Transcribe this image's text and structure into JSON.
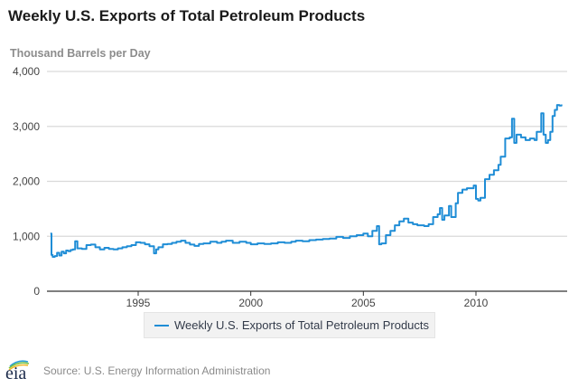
{
  "title": "Weekly U.S. Exports of Total Petroleum Products",
  "footer": {
    "logo_text": "eia",
    "source": "Source: U.S. Energy Information Administration"
  },
  "colors": {
    "series": "#1f8dd6",
    "gridline": "#d9d9d9",
    "axis": "#333333"
  },
  "chart_data": {
    "type": "line",
    "title": "Weekly U.S. Exports of Total Petroleum Products",
    "xlabel": "",
    "ylabel": "Thousand Barrels per Day",
    "xlim": [
      1991.0,
      2014.0
    ],
    "ylim": [
      0,
      4000
    ],
    "grid": true,
    "legend_position": "bottom-center",
    "x_ticks": [
      1995,
      2000,
      2005,
      2010
    ],
    "x_tick_labels": [
      "1995",
      "2000",
      "2005",
      "2010"
    ],
    "y_ticks": [
      0,
      1000,
      2000,
      3000,
      4000
    ],
    "y_tick_labels": [
      "0",
      "1,000",
      "2,000",
      "3,000",
      "4,000"
    ],
    "series": [
      {
        "name": "Weekly U.S. Exports of Total Petroleum Products",
        "x": [
          1991.1,
          1991.15,
          1991.2,
          1991.3,
          1991.4,
          1991.5,
          1991.6,
          1991.7,
          1991.8,
          1991.9,
          1992.0,
          1992.1,
          1992.2,
          1992.3,
          1992.5,
          1992.7,
          1992.9,
          1993.1,
          1993.3,
          1993.5,
          1993.7,
          1993.9,
          1994.1,
          1994.3,
          1994.5,
          1994.7,
          1994.9,
          1995.1,
          1995.3,
          1995.5,
          1995.7,
          1995.8,
          1995.9,
          1996.1,
          1996.3,
          1996.5,
          1996.7,
          1996.9,
          1997.1,
          1997.3,
          1997.5,
          1997.7,
          1997.9,
          1998.2,
          1998.5,
          1998.7,
          1998.9,
          1999.2,
          1999.5,
          1999.8,
          2000.0,
          2000.3,
          2000.6,
          2000.9,
          2001.2,
          2001.5,
          2001.8,
          2002.0,
          2002.3,
          2002.6,
          2002.9,
          2003.2,
          2003.5,
          2003.8,
          2004.1,
          2004.4,
          2004.7,
          2005.0,
          2005.2,
          2005.4,
          2005.6,
          2005.7,
          2005.8,
          2006.0,
          2006.2,
          2006.4,
          2006.6,
          2006.8,
          2007.0,
          2007.2,
          2007.4,
          2007.7,
          2007.9,
          2008.1,
          2008.3,
          2008.4,
          2008.5,
          2008.6,
          2008.8,
          2008.9,
          2009.1,
          2009.2,
          2009.4,
          2009.6,
          2009.9,
          2010.0,
          2010.1,
          2010.2,
          2010.4,
          2010.6,
          2010.8,
          2011.0,
          2011.1,
          2011.3,
          2011.5,
          2011.6,
          2011.7,
          2011.8,
          2012.0,
          2012.2,
          2012.4,
          2012.6,
          2012.7,
          2012.9,
          2013.0,
          2013.1,
          2013.2,
          2013.3,
          2013.4,
          2013.5,
          2013.6,
          2013.7,
          2013.8
        ],
        "y": [
          1050,
          660,
          625,
          640,
          700,
          650,
          720,
          690,
          740,
          730,
          750,
          760,
          910,
          780,
          770,
          840,
          850,
          800,
          760,
          790,
          770,
          760,
          780,
          800,
          820,
          840,
          890,
          880,
          855,
          820,
          690,
          760,
          800,
          855,
          860,
          880,
          900,
          920,
          880,
          850,
          825,
          860,
          870,
          900,
          880,
          900,
          920,
          880,
          900,
          880,
          855,
          870,
          860,
          870,
          890,
          880,
          900,
          920,
          910,
          930,
          940,
          950,
          960,
          990,
          970,
          1000,
          1020,
          1050,
          1000,
          1100,
          1185,
          855,
          870,
          1020,
          1100,
          1200,
          1270,
          1320,
          1250,
          1220,
          1200,
          1185,
          1220,
          1350,
          1400,
          1515,
          1300,
          1380,
          1550,
          1350,
          1600,
          1790,
          1850,
          1875,
          1925,
          1680,
          1650,
          1700,
          2040,
          2120,
          2200,
          2300,
          2450,
          2780,
          2800,
          3140,
          2700,
          2850,
          2800,
          2750,
          2780,
          2750,
          2900,
          3240,
          2850,
          2700,
          2750,
          2900,
          3190,
          3300,
          3390,
          3380,
          3400
        ]
      }
    ]
  }
}
